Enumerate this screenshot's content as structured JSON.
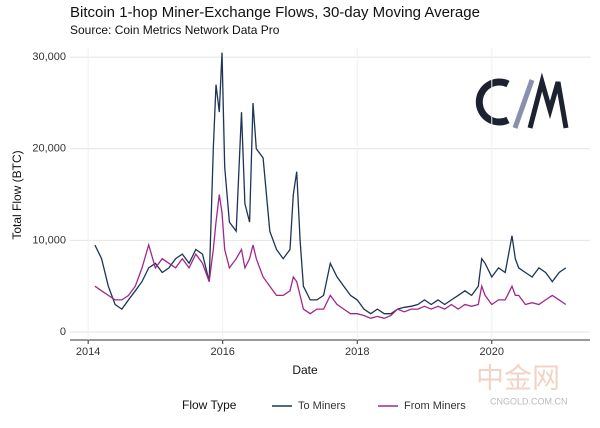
{
  "chart_data": {
    "type": "line",
    "title": "Bitcoin 1-hop Miner-Exchange Flows, 30-day Moving Average",
    "subtitle": "Source: Coin Metrics Network Data Pro",
    "x_label": "Date",
    "y_label": "Total Flow (BTC)",
    "legend_title": "Flow Type",
    "legend": "bottom",
    "xlim": [
      2013.73,
      2021.46
    ],
    "xticks": [
      2014,
      2016,
      2018,
      2020
    ],
    "ylim": [
      0,
      31000
    ],
    "yticks": [
      0,
      {
        "value": 10000,
        "label": "10,000"
      },
      {
        "value": 20000,
        "label": "20,000"
      },
      {
        "value": 30000,
        "label": "30,000"
      }
    ],
    "grid": true,
    "x": [
      2014.1,
      2014.2,
      2014.3,
      2014.4,
      2014.5,
      2014.6,
      2014.7,
      2014.8,
      2014.9,
      2015.0,
      2015.1,
      2015.2,
      2015.3,
      2015.4,
      2015.5,
      2015.6,
      2015.7,
      2015.8,
      2015.86,
      2015.9,
      2015.95,
      2015.99,
      2016.03,
      2016.1,
      2016.2,
      2016.28,
      2016.33,
      2016.4,
      2016.45,
      2016.5,
      2016.6,
      2016.7,
      2016.8,
      2016.9,
      2017.0,
      2017.05,
      2017.1,
      2017.15,
      2017.2,
      2017.3,
      2017.4,
      2017.5,
      2017.6,
      2017.7,
      2017.8,
      2017.9,
      2018.0,
      2018.1,
      2018.2,
      2018.3,
      2018.4,
      2018.5,
      2018.6,
      2018.7,
      2018.8,
      2018.9,
      2019.0,
      2019.1,
      2019.2,
      2019.3,
      2019.4,
      2019.5,
      2019.6,
      2019.7,
      2019.8,
      2019.85,
      2019.9,
      2020.0,
      2020.1,
      2020.2,
      2020.3,
      2020.35,
      2020.4,
      2020.5,
      2020.6,
      2020.7,
      2020.8,
      2020.9,
      2021.0,
      2021.1
    ],
    "series": [
      {
        "name": "To Miners",
        "color": "#1c3557",
        "values": [
          9500,
          8000,
          5000,
          3000,
          2500,
          3500,
          4500,
          5500,
          7000,
          7500,
          6500,
          7000,
          8000,
          8500,
          7500,
          9000,
          8500,
          5500,
          20000,
          27000,
          24000,
          30500,
          18000,
          12000,
          11000,
          24000,
          14000,
          12000,
          25000,
          20000,
          19000,
          11000,
          9000,
          8000,
          9000,
          15000,
          17500,
          10000,
          5000,
          3500,
          3500,
          4000,
          7500,
          6000,
          5000,
          4000,
          3500,
          2500,
          2000,
          2500,
          2000,
          2000,
          2500,
          2700,
          2800,
          3000,
          3500,
          3000,
          3500,
          3000,
          3500,
          4000,
          4500,
          4000,
          5000,
          8000,
          7500,
          6000,
          7000,
          6500,
          10500,
          8000,
          7000,
          6500,
          6000,
          7000,
          6500,
          5500,
          6500,
          7000
        ]
      },
      {
        "name": "From Miners",
        "color": "#a0288c",
        "values": [
          5000,
          4500,
          4000,
          3500,
          3500,
          4000,
          5000,
          7000,
          9500,
          7000,
          8000,
          7500,
          7000,
          8000,
          7000,
          8500,
          7500,
          5500,
          9000,
          12000,
          15000,
          13000,
          9000,
          7000,
          8000,
          9000,
          7000,
          8000,
          9500,
          8000,
          6000,
          5000,
          4000,
          4000,
          4500,
          6000,
          5500,
          4000,
          2500,
          2000,
          2500,
          2500,
          4000,
          3000,
          2500,
          2000,
          2000,
          1800,
          1500,
          1700,
          1500,
          1800,
          2500,
          2200,
          2500,
          2500,
          2800,
          2500,
          2800,
          2500,
          3000,
          2500,
          3000,
          2800,
          3000,
          5000,
          4000,
          3000,
          3500,
          3500,
          5000,
          4000,
          4000,
          3000,
          3200,
          3000,
          3500,
          4000,
          3500,
          3000
        ]
      }
    ]
  },
  "watermark": {
    "name": "中金网",
    "url": "CNGOLD.COM.CN"
  }
}
